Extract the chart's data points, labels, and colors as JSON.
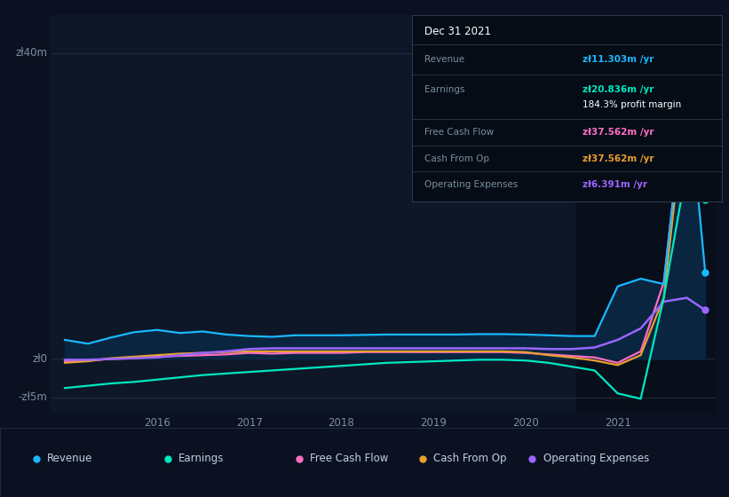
{
  "bg_color": "#0b1120",
  "chart_bg": "#0d1728",
  "panel_bg": "#0d1728",
  "dark_panel": "#080e1a",
  "grid_color": "#1e2d3d",
  "text_color": "#7a8fa0",
  "title_color": "#ffffff",
  "ylim": [
    -7,
    45
  ],
  "xlabel_years": [
    "2016",
    "2017",
    "2018",
    "2019",
    "2020",
    "2021"
  ],
  "legend": [
    {
      "label": "Revenue",
      "color": "#1ab8ff"
    },
    {
      "label": "Earnings",
      "color": "#00e8c0"
    },
    {
      "label": "Free Cash Flow",
      "color": "#ff6ec7"
    },
    {
      "label": "Cash From Op",
      "color": "#e8a030"
    },
    {
      "label": "Operating Expenses",
      "color": "#9966ff"
    }
  ],
  "revenue_color": "#1ab8ff",
  "revenue_fill": "#0a2540",
  "earnings_color": "#00e8c0",
  "fcf_color": "#ff6ec7",
  "cashop_color": "#e8a030",
  "opex_color": "#9966ff",
  "tooltip_bg": "#060c16",
  "tooltip_border": "#2a3a4a",
  "tooltip_title": "Dec 31 2021",
  "tooltip_rows": [
    {
      "label": "Revenue",
      "value": "zł11.303m /yr",
      "value_color": "#1ab8ff"
    },
    {
      "label": "Earnings",
      "value": "zł20.836m /yr",
      "value_color": "#00e8c0"
    },
    {
      "label": "",
      "value": "184.3% profit margin",
      "value_color": "#ffffff"
    },
    {
      "label": "Free Cash Flow",
      "value": "zł37.562m /yr",
      "value_color": "#ff6ec7"
    },
    {
      "label": "Cash From Op",
      "value": "zł37.562m /yr",
      "value_color": "#e8a030"
    },
    {
      "label": "Operating Expenses",
      "value": "zł6.391m /yr",
      "value_color": "#9966ff"
    }
  ]
}
